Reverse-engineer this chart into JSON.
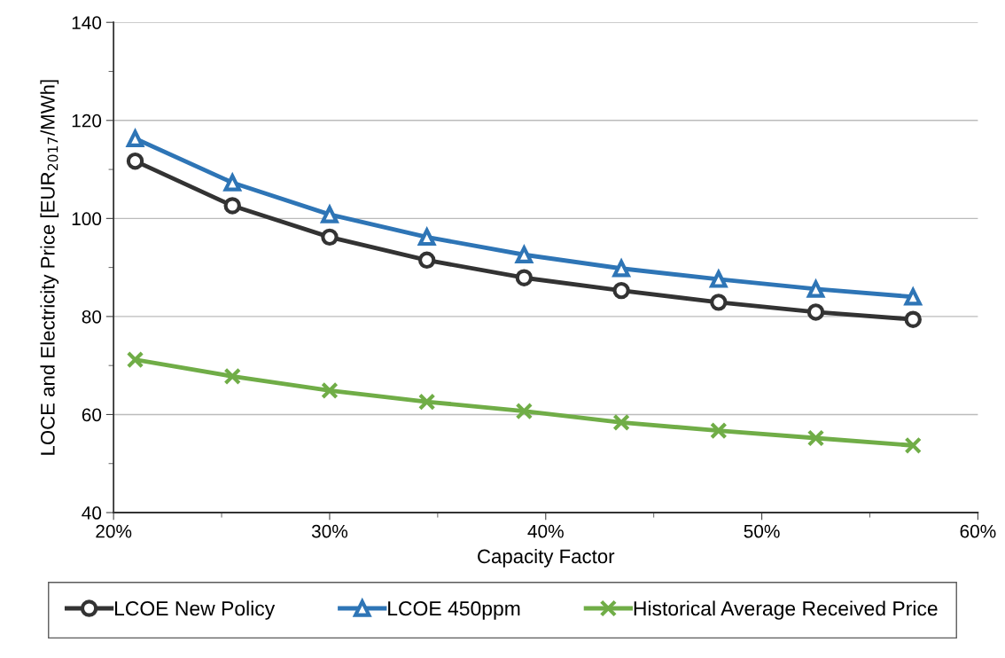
{
  "chart_data": {
    "type": "line",
    "xlabel": "Capacity Factor",
    "ylabel": "LOCE and Electricity Price [EUR$_{2017}$/MWh]",
    "x": [
      21,
      25.5,
      30,
      34.5,
      39,
      43.5,
      48,
      52.5,
      57
    ],
    "series": [
      {
        "name": "LCOE New Policy",
        "color": "#333333",
        "marker": "circle",
        "values": [
          111.7,
          102.6,
          96.2,
          91.5,
          87.9,
          85.3,
          82.9,
          80.9,
          79.4
        ]
      },
      {
        "name": "LCOE 450ppm",
        "color": "#2e75b6",
        "marker": "triangle",
        "values": [
          116.3,
          107.3,
          100.8,
          96.2,
          92.6,
          89.8,
          87.6,
          85.6,
          84.0
        ]
      },
      {
        "name": "Historical Average Received Price",
        "color": "#70ad47",
        "marker": "cross",
        "values": [
          71.2,
          67.8,
          64.9,
          62.6,
          60.7,
          58.4,
          56.7,
          55.2,
          53.7
        ]
      }
    ],
    "xlim": [
      20,
      60
    ],
    "xticks": [
      {
        "value": 20,
        "label": "20%"
      },
      {
        "value": 30,
        "label": "30%"
      },
      {
        "value": 40,
        "label": "40%"
      },
      {
        "value": 50,
        "label": "50%"
      },
      {
        "value": 60,
        "label": "60%"
      }
    ],
    "ylim": [
      40,
      140
    ],
    "yticks": [
      40,
      60,
      80,
      100,
      120,
      140
    ],
    "grid": "y",
    "legend": "bottom",
    "line_style": "solid"
  }
}
